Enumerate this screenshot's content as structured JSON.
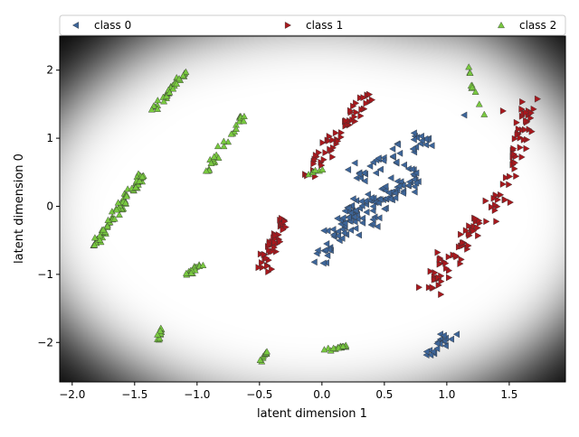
{
  "chart_data": {
    "type": "scatter",
    "xlabel": "latent dimension 1",
    "ylabel": "latent dimension 0",
    "xlim": [
      -2.1,
      1.95
    ],
    "ylim": [
      -2.58,
      2.5
    ],
    "xticks": [
      -2.0,
      -1.5,
      -1.0,
      -0.5,
      0.0,
      0.5,
      1.0,
      1.5
    ],
    "xtick_labels": [
      "−2.0",
      "−1.5",
      "−1.0",
      "−0.5",
      "0.0",
      "0.5",
      "1.0",
      "1.5"
    ],
    "yticks": [
      -2,
      -1,
      0,
      1,
      2
    ],
    "ytick_labels": [
      "−2",
      "−1",
      "0",
      "1",
      "2"
    ],
    "legend": "top, horizontal",
    "background": "grayscale density (white = high)",
    "series": [
      {
        "name": "class 0",
        "marker": "triangle-left",
        "color": "#3d6599",
        "clusters": [
          {
            "x0": 0.15,
            "y0": -0.45,
            "x1": 0.75,
            "y1": 0.55,
            "n": 90,
            "w": 0.14
          },
          {
            "x0": -0.02,
            "y0": -0.85,
            "x1": 0.3,
            "y1": 0.1,
            "n": 40,
            "w": 0.1
          },
          {
            "x0": 0.25,
            "y0": 0.45,
            "x1": 0.85,
            "y1": 1.05,
            "n": 40,
            "w": 0.1
          },
          {
            "x0": 0.85,
            "y0": -2.2,
            "x1": 1.0,
            "y1": -1.9,
            "n": 18,
            "w": 0.05
          }
        ],
        "extra_points": [
          [
            1.14,
            1.34
          ],
          [
            1.08,
            -1.88
          ]
        ]
      },
      {
        "name": "class 1",
        "marker": "triangle-right",
        "color": "#a8181d",
        "clusters": [
          {
            "x0": -0.48,
            "y0": -0.95,
            "x1": -0.3,
            "y1": -0.15,
            "n": 45,
            "w": 0.06
          },
          {
            "x0": -0.12,
            "y0": 0.45,
            "x1": 0.38,
            "y1": 1.65,
            "n": 55,
            "w": 0.08
          },
          {
            "x0": 0.85,
            "y0": -1.25,
            "x1": 1.42,
            "y1": 0.2,
            "n": 70,
            "w": 0.1
          },
          {
            "x0": 1.48,
            "y0": 0.3,
            "x1": 1.68,
            "y1": 1.6,
            "n": 45,
            "w": 0.07
          }
        ],
        "extra_points": [
          [
            -0.12,
            0.45
          ],
          [
            1.45,
            1.4
          ],
          [
            -0.05,
            0.75
          ]
        ]
      },
      {
        "name": "class 2",
        "marker": "triangle-up",
        "color": "#78c93f",
        "clusters": [
          {
            "x0": -1.82,
            "y0": -0.58,
            "x1": -1.44,
            "y1": 0.47,
            "n": 85,
            "w": 0.035
          },
          {
            "x0": -1.35,
            "y0": 1.4,
            "x1": -1.08,
            "y1": 2.0,
            "n": 38,
            "w": 0.025
          },
          {
            "x0": -0.92,
            "y0": 0.5,
            "x1": -0.62,
            "y1": 1.35,
            "n": 30,
            "w": 0.035
          },
          {
            "x0": -1.1,
            "y0": -1.0,
            "x1": -0.95,
            "y1": -0.85,
            "n": 14,
            "w": 0.03
          },
          {
            "x0": -1.31,
            "y0": -1.98,
            "x1": -1.28,
            "y1": -1.75,
            "n": 10,
            "w": 0.015
          },
          {
            "x0": -0.5,
            "y0": -2.28,
            "x1": -0.44,
            "y1": -2.13,
            "n": 10,
            "w": 0.02
          },
          {
            "x0": 0.0,
            "y0": -2.12,
            "x1": 0.2,
            "y1": -2.05,
            "n": 16,
            "w": 0.02
          },
          {
            "x0": 1.17,
            "y0": 2.18,
            "x1": 1.21,
            "y1": 1.7,
            "n": 7,
            "w": 0.012
          },
          {
            "x0": -0.12,
            "y0": 0.48,
            "x1": 0.0,
            "y1": 0.55,
            "n": 6,
            "w": 0.02
          }
        ],
        "extra_points": [
          [
            1.23,
            1.68
          ],
          [
            1.26,
            1.5
          ],
          [
            1.3,
            1.35
          ]
        ]
      }
    ]
  }
}
